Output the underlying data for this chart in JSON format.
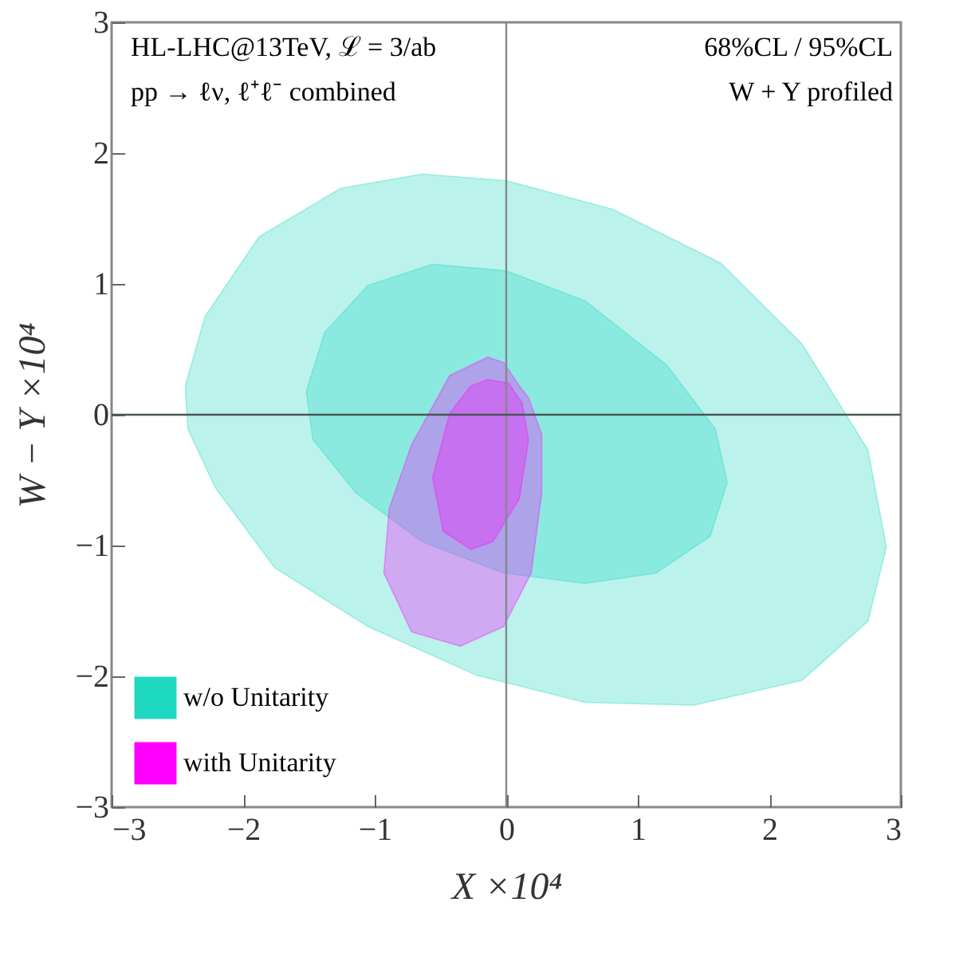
{
  "chart_data": {
    "type": "area",
    "xlabel": "X ×10⁴",
    "ylabel": "W − Y ×10⁴",
    "annotations": [
      "HL-LHC@13TeV, ℒ = 3/ab",
      "pp → ℓν, ℓ⁺ℓ⁻ combined",
      "68%CL / 95%CL",
      "W + Y profiled"
    ],
    "series": [
      {
        "name": "w/o Unitarity",
        "color": "#1ed8c0",
        "x": [
          -2.44,
          -2.29,
          -1.88,
          -1.26,
          -0.64,
          0,
          0.81,
          1.63,
          2.25,
          2.75,
          2.89,
          2.75,
          2.25,
          1.43,
          0.6,
          -0.23,
          -1.05,
          -1.76,
          -2.21,
          -2.42,
          -2.44
        ],
        "values": [
          0.22,
          0.75,
          1.36,
          1.73,
          1.84,
          1.79,
          1.57,
          1.16,
          0.54,
          -0.27,
          -1.01,
          -1.58,
          -2.03,
          -2.22,
          -2.2,
          -1.99,
          -1.62,
          -1.17,
          -0.56,
          -0.11,
          0.22
        ]
      },
      {
        "color": "#1ed8c0",
        "x": [
          -1.52,
          -1.38,
          -1.05,
          -0.56,
          0,
          0.6,
          1.22,
          1.59,
          1.68,
          1.55,
          1.14,
          0.6,
          -0.02,
          -0.64,
          -1.14,
          -1.47,
          -1.52
        ],
        "values": [
          0.18,
          0.63,
          0.99,
          1.15,
          1.1,
          0.87,
          0.38,
          -0.11,
          -0.52,
          -0.93,
          -1.21,
          -1.29,
          -1.21,
          -0.97,
          -0.6,
          -0.19,
          0.18
        ]
      },
      {
        "name": "with Unitarity",
        "color": "#ff00ff",
        "x": [
          -0.14,
          -0.02,
          0.1,
          0.17,
          0.27,
          0.27,
          0.19,
          -0.02,
          -0.35,
          -0.72,
          -0.93,
          -0.89,
          -0.72,
          -0.43,
          -0.14
        ],
        "values": [
          0.44,
          0.4,
          0.22,
          0.13,
          -0.15,
          -0.6,
          -1.21,
          -1.62,
          -1.77,
          -1.66,
          -1.21,
          -0.72,
          -0.23,
          0.3,
          0.44
        ]
      },
      {
        "color": "#ff00ff",
        "x": [
          -0.14,
          0.02,
          0.12,
          0.17,
          0.1,
          -0.1,
          -0.27,
          -0.48,
          -0.56,
          -0.43,
          -0.27,
          -0.14
        ],
        "values": [
          0.27,
          0.24,
          0.09,
          -0.19,
          -0.64,
          -0.97,
          -1.03,
          -0.89,
          -0.48,
          0.01,
          0.22,
          0.27
        ]
      }
    ],
    "xlim": [
      -3,
      3
    ],
    "ylim": [
      -3,
      3
    ],
    "xticks": [
      -3,
      -2,
      -1,
      0,
      1,
      2,
      3
    ],
    "yticks": [
      -3,
      -2,
      -1,
      0,
      1,
      2,
      3
    ],
    "ref_lines": [
      {
        "axis": "x",
        "value": 0,
        "color": "#808a8a"
      },
      {
        "axis": "y",
        "value": 0,
        "color": "#4a5656"
      }
    ],
    "grid": false,
    "legend": "bottom left",
    "marker": "none",
    "line_style": "solid"
  }
}
